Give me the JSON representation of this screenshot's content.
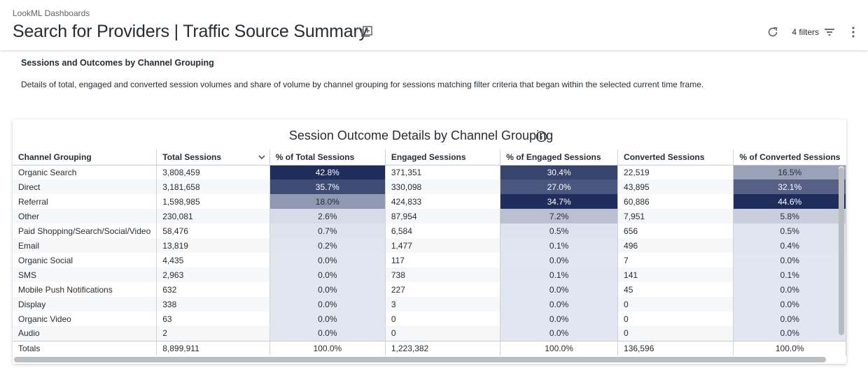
{
  "header": {
    "breadcrumb": "LookML Dashboards",
    "title": "Search for Providers | Traffic Source Summary",
    "filters_label": "4 filters"
  },
  "section": {
    "title": "Sessions and Outcomes by Channel Grouping",
    "description": "Details of total, engaged and converted session volumes and share of volume by channel grouping for sessions matching filter criteria that began within the selected current time frame."
  },
  "tile": {
    "title": "Session Outcome Details by Channel Grouping",
    "columns": [
      "Channel Grouping",
      "Total Sessions",
      "% of Total Sessions",
      "Engaged Sessions",
      "% of Engaged Sessions",
      "Converted Sessions",
      "% of Converted Sessions"
    ],
    "rows": [
      [
        "Organic Search",
        "3,808,459",
        "42.8%",
        "371,351",
        "30.4%",
        "22,519",
        "16.5%"
      ],
      [
        "Direct",
        "3,181,658",
        "35.7%",
        "330,098",
        "27.0%",
        "43,895",
        "32.1%"
      ],
      [
        "Referral",
        "1,598,985",
        "18.0%",
        "424,833",
        "34.7%",
        "60,886",
        "44.6%"
      ],
      [
        "Other",
        "230,081",
        "2.6%",
        "87,954",
        "7.2%",
        "7,951",
        "5.8%"
      ],
      [
        "Paid Shopping/Search/Social/Video",
        "58,476",
        "0.7%",
        "6,584",
        "0.5%",
        "656",
        "0.5%"
      ],
      [
        "Email",
        "13,819",
        "0.2%",
        "1,477",
        "0.1%",
        "496",
        "0.4%"
      ],
      [
        "Organic Social",
        "4,435",
        "0.0%",
        "117",
        "0.0%",
        "7",
        "0.0%"
      ],
      [
        "SMS",
        "2,963",
        "0.0%",
        "738",
        "0.1%",
        "141",
        "0.1%"
      ],
      [
        "Mobile Push Notifications",
        "632",
        "0.0%",
        "227",
        "0.0%",
        "45",
        "0.0%"
      ],
      [
        "Display",
        "338",
        "0.0%",
        "3",
        "0.0%",
        "0",
        "0.0%"
      ],
      [
        "Organic Video",
        "63",
        "0.0%",
        "0",
        "0.0%",
        "0",
        "0.0%"
      ],
      [
        "Audio",
        "2",
        "0.0%",
        "0",
        "0.0%",
        "0",
        "0.0%"
      ]
    ],
    "totals": [
      "Totals",
      "8,899,911",
      "100.0%",
      "1,223,382",
      "100.0%",
      "136,596",
      "100.0%"
    ],
    "heat_colors": {
      "low": "#e2e6f0",
      "high": "#1f2d5c"
    }
  }
}
